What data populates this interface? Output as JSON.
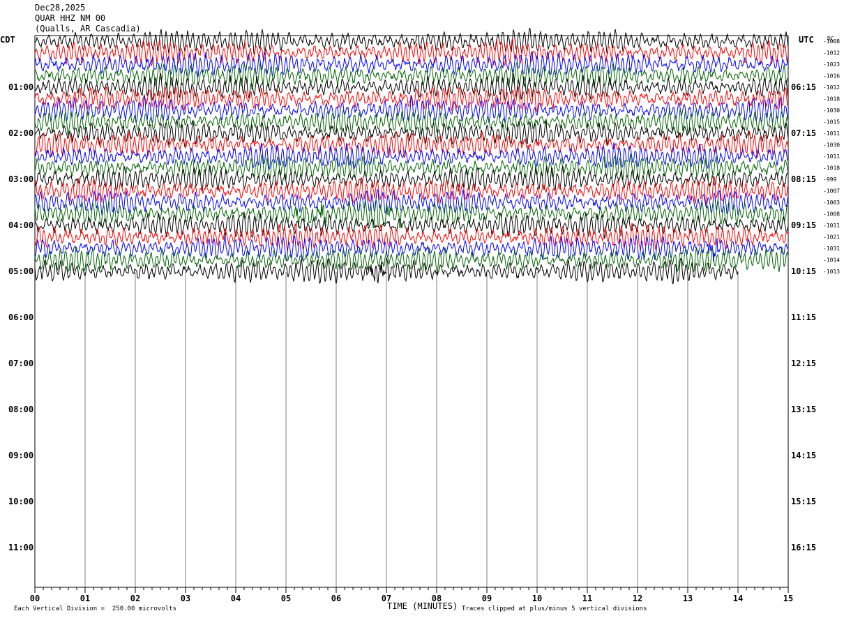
{
  "header": {
    "date": "Dec28,2025",
    "station": "QUAR HHZ NM 00",
    "location": "(Qualls, AR Cascadia)"
  },
  "left_tz": "CDT",
  "right_tz": "UTC",
  "dc_label": "DC",
  "footer": {
    "scale_note": "Each Vertical Division =  250.00 microvolts",
    "clip_note": "Traces clipped at plus/minus 5 vertical divisions"
  },
  "colors": {
    "trace_cycle": [
      "#000000",
      "#ff0000",
      "#0000ff",
      "#006400"
    ],
    "grid": "#808080",
    "axis": "#000000"
  },
  "chart_data": {
    "type": "line",
    "title": "Dec28,2025 QUAR HHZ NM 00 (Qualls, AR Cascadia)",
    "xlabel": "TIME (MINUTES)",
    "ylabel_left": "CDT",
    "ylabel_right": "UTC",
    "xlim": [
      0,
      15
    ],
    "x_ticks": [
      "00",
      "01",
      "02",
      "03",
      "04",
      "05",
      "06",
      "07",
      "08",
      "09",
      "10",
      "11",
      "12",
      "13",
      "14",
      "15"
    ],
    "left_hour_labels": [
      "01:00",
      "02:00",
      "03:00",
      "04:00",
      "05:00",
      "06:00",
      "07:00",
      "08:00",
      "09:00",
      "10:00",
      "11:00"
    ],
    "right_hour_labels": [
      "06:15",
      "07:15",
      "08:15",
      "09:15",
      "10:15",
      "11:15",
      "12:15",
      "13:15",
      "14:15",
      "15:15",
      "16:15"
    ],
    "trace_minutes": 15,
    "traces_per_hour": 4,
    "trace_count": 21,
    "last_trace_end_minute": 14,
    "dc_offsets": [
      "-1008",
      "-1012",
      "-1023",
      "-1016",
      "-1012",
      "-1018",
      "-1030",
      "-1015",
      "-1011",
      "-1030",
      "-1011",
      "-1018",
      "-999",
      "-1007",
      "-1003",
      "-1008",
      "-1011",
      "-1021",
      "-1031",
      "-1014",
      "-1013"
    ],
    "notable_bursts": [
      {
        "trace_index": 15,
        "minute_start": 5.2,
        "minute_end": 5.8
      },
      {
        "trace_index": 15,
        "minute_start": 6.7,
        "minute_end": 7.3
      },
      {
        "trace_index": 18,
        "minute_start": 13.4,
        "minute_end": 13.6
      },
      {
        "trace_index": 20,
        "minute_start": 6.6,
        "minute_end": 7.1
      }
    ],
    "scale_microvolts_per_division": 250.0,
    "clip_divisions": 5
  }
}
